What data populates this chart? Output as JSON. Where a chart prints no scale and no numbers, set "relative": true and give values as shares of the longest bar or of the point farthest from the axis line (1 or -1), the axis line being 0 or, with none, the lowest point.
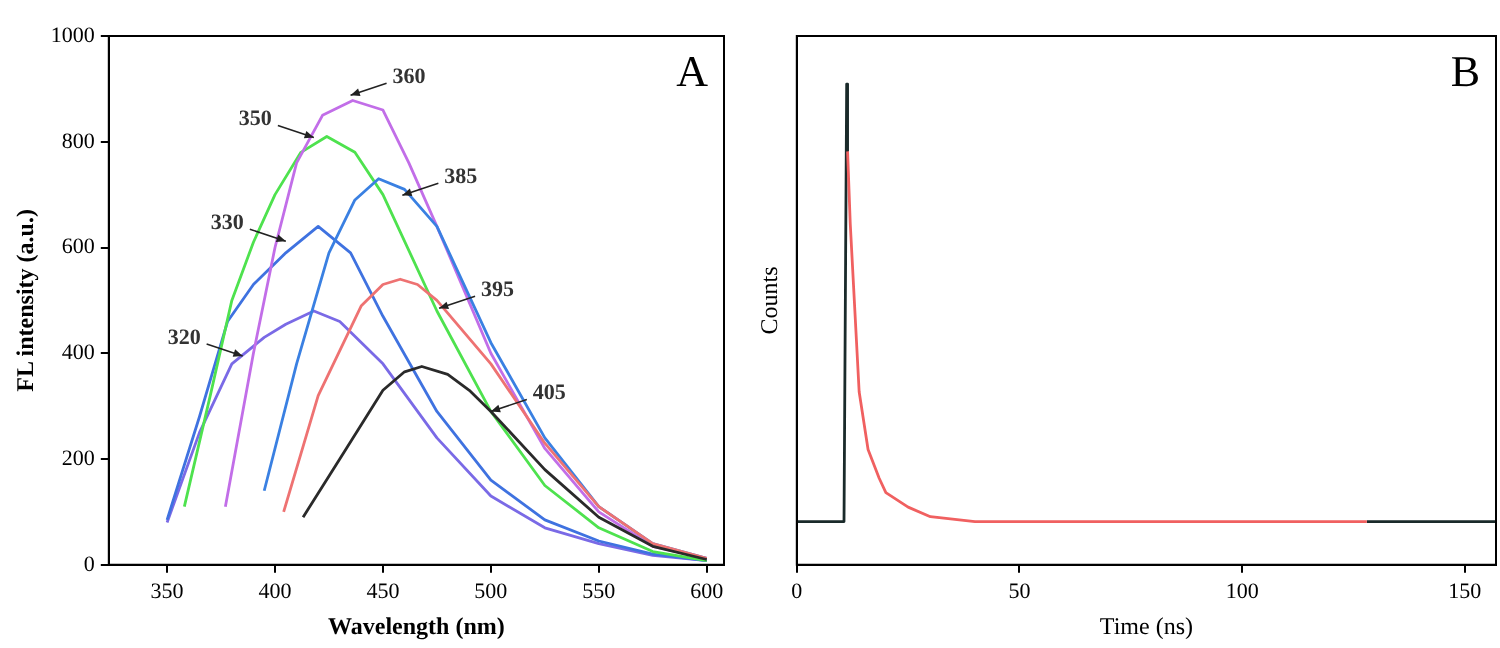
{
  "chart_data": [
    {
      "type": "line",
      "xlabel": "Wavelength (nm)",
      "ylabel": "FL intensity (a.u.)",
      "xlim": [
        323,
        608
      ],
      "ylim": [
        0,
        1000
      ],
      "xticks": [
        350,
        400,
        450,
        500,
        550,
        600
      ],
      "yticks": [
        0,
        200,
        400,
        600,
        800,
        1000
      ],
      "marker": "none",
      "series": [
        {
          "color": "#7a6ae6",
          "x": [
            350,
            365,
            380,
            395,
            405,
            418,
            430,
            450,
            475,
            500,
            525,
            550,
            575,
            600
          ],
          "values": [
            80,
            250,
            380,
            430,
            455,
            480,
            460,
            380,
            240,
            130,
            70,
            40,
            18,
            8
          ]
        },
        {
          "color": "#3f72e0",
          "x": [
            350,
            365,
            378,
            390,
            405,
            420,
            435,
            450,
            475,
            500,
            525,
            550,
            575,
            600
          ],
          "values": [
            85,
            280,
            460,
            530,
            590,
            640,
            590,
            470,
            290,
            160,
            85,
            45,
            20,
            8
          ]
        },
        {
          "color": "#4ee24e",
          "x": [
            358,
            370,
            380,
            390,
            400,
            412,
            424,
            437,
            450,
            475,
            500,
            525,
            550,
            575,
            600
          ],
          "values": [
            110,
            320,
            500,
            610,
            700,
            780,
            810,
            780,
            700,
            480,
            290,
            150,
            70,
            25,
            8
          ]
        },
        {
          "color": "#c26ee8",
          "x": [
            377,
            390,
            400,
            410,
            422,
            436,
            450,
            462,
            475,
            500,
            525,
            550,
            575,
            600
          ],
          "values": [
            110,
            400,
            600,
            760,
            850,
            878,
            860,
            760,
            640,
            400,
            220,
            100,
            35,
            12
          ]
        },
        {
          "color": "#3a80e2",
          "x": [
            395,
            410,
            425,
            437,
            448,
            460,
            475,
            500,
            525,
            550,
            575,
            600
          ],
          "values": [
            140,
            380,
            590,
            690,
            730,
            710,
            640,
            420,
            240,
            110,
            40,
            12
          ]
        },
        {
          "color": "#ee7272",
          "x": [
            404,
            420,
            440,
            450,
            458,
            466,
            475,
            500,
            525,
            550,
            575,
            600
          ],
          "values": [
            100,
            320,
            490,
            530,
            540,
            530,
            500,
            380,
            230,
            110,
            40,
            12
          ]
        },
        {
          "color": "#2a2a2a",
          "x": [
            413,
            430,
            450,
            460,
            468,
            480,
            490,
            500,
            525,
            550,
            575,
            600
          ],
          "values": [
            90,
            200,
            330,
            365,
            375,
            360,
            330,
            290,
            180,
            90,
            35,
            10
          ]
        }
      ],
      "annotations": [
        {
          "text": "320",
          "x": 385,
          "y": 395
        },
        {
          "text": "330",
          "x": 405,
          "y": 612
        },
        {
          "text": "350",
          "x": 418,
          "y": 808
        },
        {
          "text": "360",
          "x": 435,
          "y": 888
        },
        {
          "text": "385",
          "x": 459,
          "y": 699
        },
        {
          "text": "395",
          "x": 476,
          "y": 485
        },
        {
          "text": "405",
          "x": 500,
          "y": 290
        },
        "A"
      ]
    },
    {
      "type": "line",
      "xlabel": "Time (ns)",
      "ylabel": "Counts",
      "relative": true,
      "tick_labels": "x",
      "xlim": [
        0,
        157
      ],
      "xticks": [
        0,
        50,
        100,
        150
      ],
      "marker": "none",
      "series": [
        {
          "color": "#1a2a2a",
          "x": [
            0,
            10.6,
            11.2,
            11.4,
            60,
            128,
            157
          ],
          "values": [
            0.09,
            0.09,
            1,
            0.86,
            null,
            0.09,
            0.09
          ]
        },
        {
          "color": "#f06060",
          "x": [
            11.4,
            12,
            14,
            16,
            18.5,
            20,
            25,
            30,
            40,
            50,
            75,
            100,
            128
          ],
          "values": [
            0.86,
            0.71,
            0.36,
            0.24,
            0.18,
            0.15,
            0.12,
            0.1,
            0.09,
            0.09,
            0.09,
            0.09,
            0.09
          ]
        }
      ],
      "annotations": [
        "B"
      ]
    }
  ]
}
